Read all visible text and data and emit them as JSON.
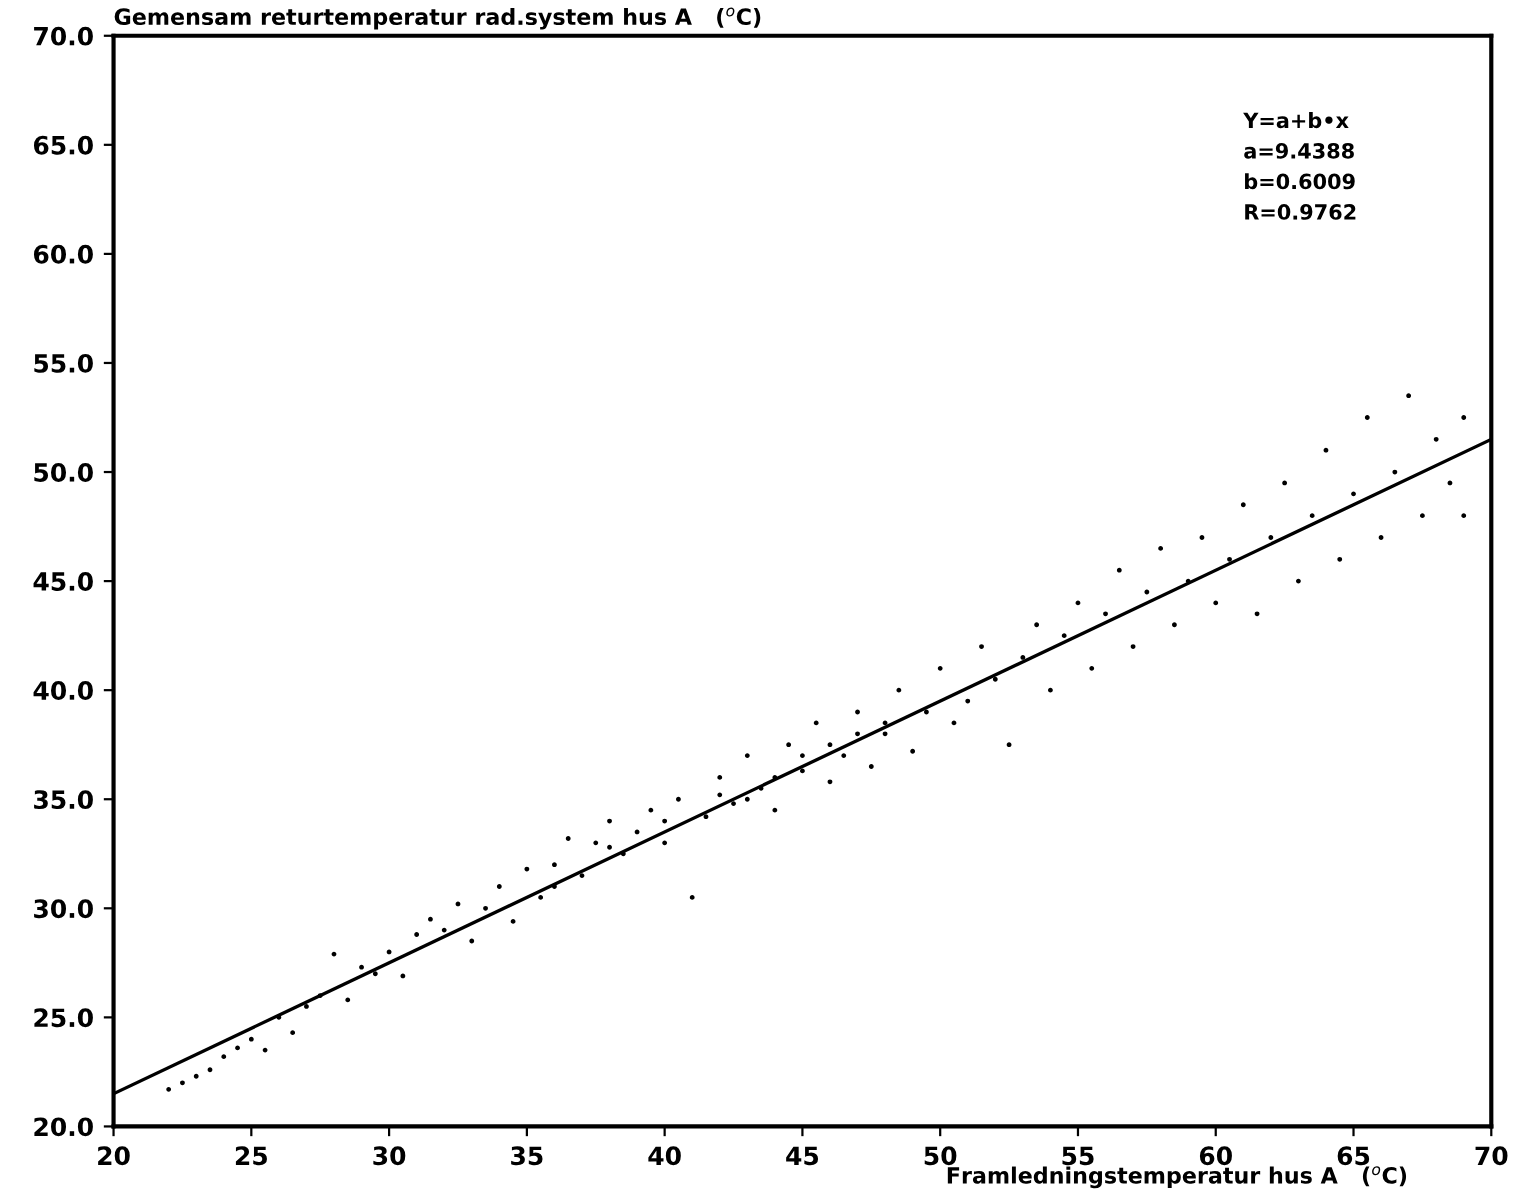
{
  "chart_data": {
    "type": "scatter",
    "title": "Gemensam returtemperatur rad.system hus A   ($^{o}$C)",
    "xlabel": "Framledningstemperatur hus A   ($^{o}$C)",
    "annotations": [
      "Y=a+b•x",
      "a=9.4388",
      "b=0.6009",
      "R=0.9762"
    ],
    "xlim": [
      20,
      70
    ],
    "ylim": [
      20,
      70
    ],
    "xticks": [
      20,
      25,
      30,
      35,
      40,
      45,
      50,
      55,
      60,
      65,
      70
    ],
    "yticks": [
      {
        "value": 20,
        "label": "20.0"
      },
      {
        "value": 25,
        "label": "25.0"
      },
      {
        "value": 30,
        "label": "30.0"
      },
      {
        "value": 35,
        "label": "35.0"
      },
      {
        "value": 40,
        "label": "40.0"
      },
      {
        "value": 45,
        "label": "45.0"
      },
      {
        "value": 50,
        "label": "50.0"
      },
      {
        "value": 55,
        "label": "55.0"
      },
      {
        "value": 60,
        "label": "60.0"
      },
      {
        "value": 65,
        "label": "65.0"
      },
      {
        "value": 70,
        "label": "70.0"
      }
    ],
    "grid": false,
    "legend": false,
    "marker": "circle",
    "series": [
      {
        "color": "#000000",
        "x": [
          22.0,
          22.5,
          23.0,
          23.5,
          24.0,
          24.5,
          25.0,
          25.5,
          26.0,
          26.5,
          27.0,
          27.5,
          28.0,
          28.5,
          29.0,
          29.5,
          30.0,
          30.5,
          31.0,
          31.5,
          32.0,
          32.5,
          33.0,
          33.5,
          34.0,
          34.5,
          35.0,
          35.5,
          36.0,
          36.5,
          37.0,
          37.5,
          38.0,
          38.5,
          39.0,
          39.5,
          40.0,
          40.5,
          41.0,
          41.5,
          42.0,
          42.5,
          43.0,
          43.5,
          44.0,
          44.5,
          45.0,
          45.5,
          46.0,
          46.5,
          47.0,
          47.5,
          48.0,
          48.5,
          49.0,
          49.5,
          50.0,
          50.5,
          51.0,
          51.5,
          52.0,
          52.5,
          53.0,
          53.5,
          54.0,
          54.5,
          55.0,
          55.5,
          56.0,
          56.5,
          57.0,
          57.5,
          58.0,
          58.5,
          59.0,
          59.5,
          60.0,
          60.5,
          61.0,
          61.5,
          62.0,
          62.5,
          63.0,
          63.5,
          64.0,
          64.5,
          65.0,
          65.5,
          66.0,
          66.5,
          67.0,
          67.5,
          68.0,
          68.5,
          69.0,
          69.0,
          36.0,
          38.0,
          40.0,
          42.0,
          44.0,
          46.0,
          48.0,
          43.0,
          45.0,
          47.0
        ],
        "values": [
          21.7,
          22.0,
          22.3,
          22.6,
          23.2,
          23.6,
          24.0,
          23.5,
          25.0,
          24.3,
          25.5,
          26.0,
          27.9,
          25.8,
          27.3,
          27.0,
          28.0,
          26.9,
          28.8,
          29.5,
          29.0,
          30.2,
          28.5,
          30.0,
          31.0,
          29.4,
          31.8,
          30.5,
          32.0,
          33.2,
          31.5,
          33.0,
          34.0,
          32.5,
          33.5,
          34.5,
          33.0,
          35.0,
          30.5,
          34.2,
          36.0,
          34.8,
          37.0,
          35.5,
          34.5,
          37.5,
          36.3,
          38.5,
          35.8,
          37.0,
          39.0,
          36.5,
          38.0,
          40.0,
          37.2,
          39.0,
          41.0,
          38.5,
          39.5,
          42.0,
          40.5,
          37.5,
          41.5,
          43.0,
          40.0,
          42.5,
          44.0,
          41.0,
          43.5,
          45.5,
          42.0,
          44.5,
          46.5,
          43.0,
          45.0,
          47.0,
          44.0,
          46.0,
          48.5,
          43.5,
          47.0,
          49.5,
          45.0,
          48.0,
          51.0,
          46.0,
          49.0,
          52.5,
          47.0,
          50.0,
          53.5,
          48.0,
          51.5,
          49.5,
          48.0,
          52.5,
          31.0,
          32.8,
          34.0,
          35.2,
          36.0,
          37.5,
          38.5,
          35.0,
          37.0,
          38.0
        ]
      },
      {
        "type": "line",
        "color": "#000000",
        "marker": "none",
        "line_style": "solid",
        "x": [
          20,
          70
        ],
        "values": [
          21.5,
          51.5
        ]
      }
    ]
  }
}
